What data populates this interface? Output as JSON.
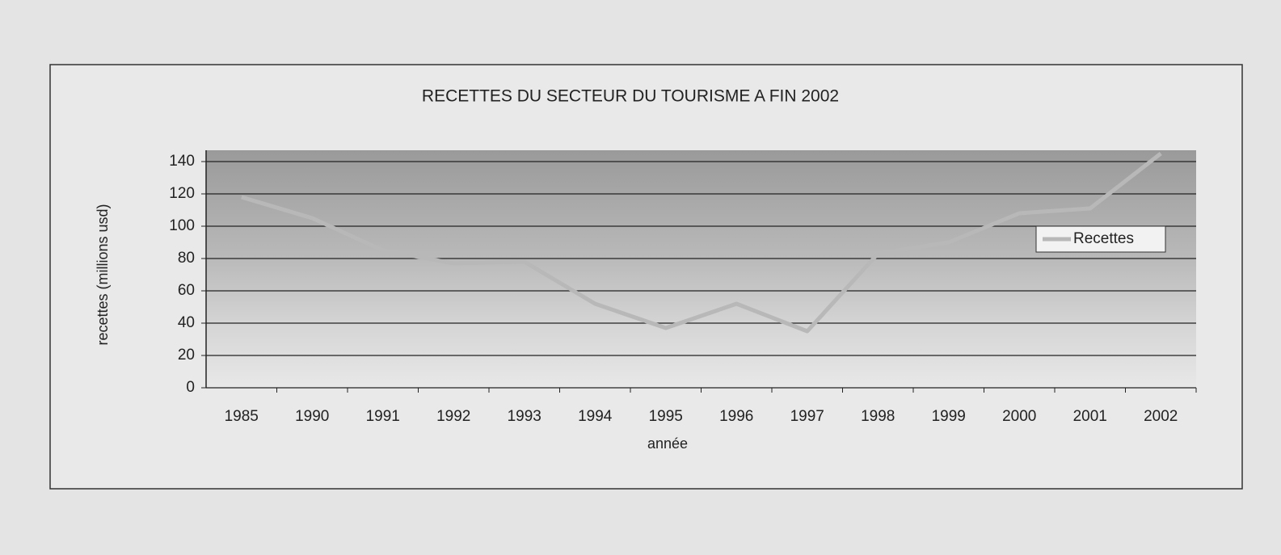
{
  "chart_data": {
    "type": "line",
    "title": "RECETTES DU SECTEUR DU TOURISME A FIN 2002",
    "x_label": "année",
    "y_label": "recettes  (millions usd)",
    "categories": [
      "1985",
      "1990",
      "1991",
      "1992",
      "1993",
      "1994",
      "1995",
      "1996",
      "1997",
      "1998",
      "1999",
      "2000",
      "2001",
      "2002"
    ],
    "series": [
      {
        "name": "Recettes",
        "color": "#b8b8b8",
        "values": [
          118,
          105,
          85,
          77,
          78,
          52,
          37,
          52,
          35,
          83,
          90,
          108,
          111,
          145
        ]
      }
    ],
    "ylim": [
      0,
      140
    ],
    "yticks": [
      0,
      20,
      40,
      60,
      80,
      100,
      120,
      140
    ],
    "grid": true,
    "legend": "right"
  }
}
